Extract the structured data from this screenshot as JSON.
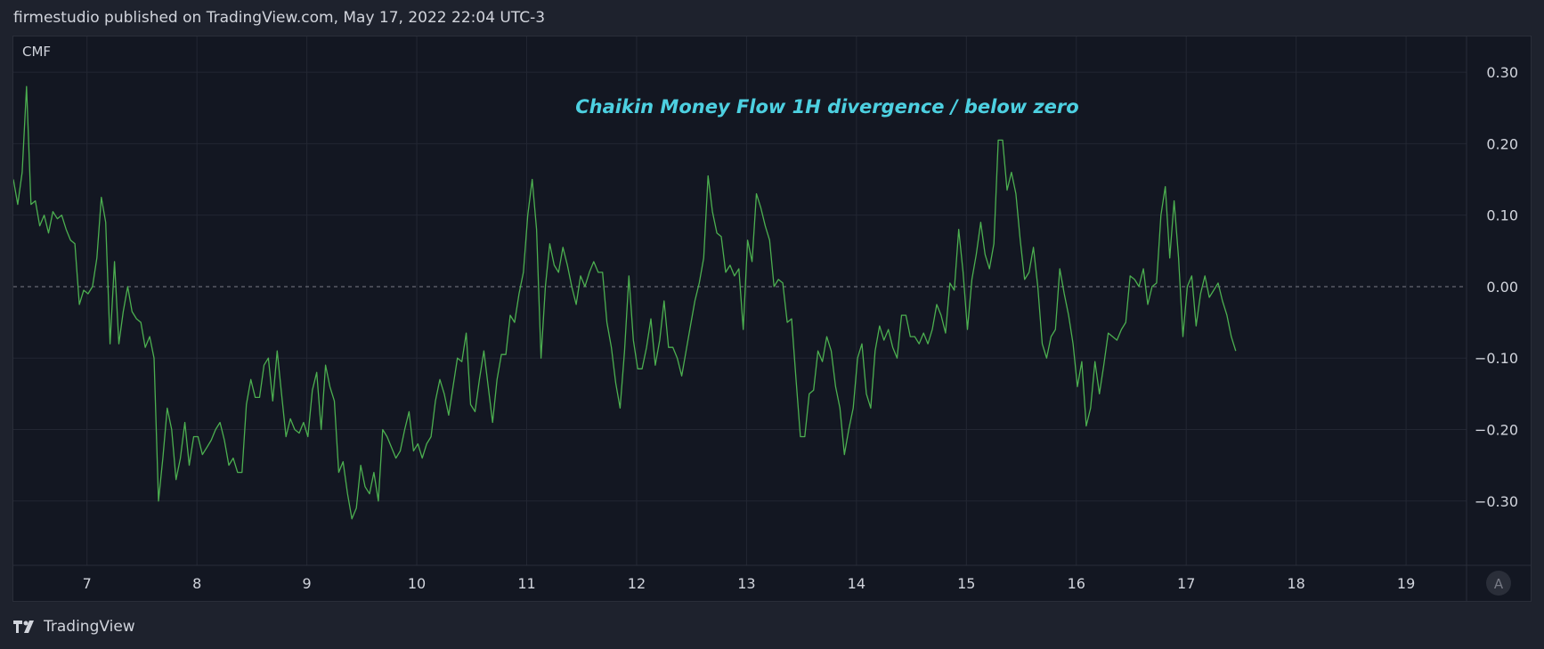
{
  "header": {
    "publisher": "firmestudio published on TradingView.com, May 17, 2022 22:04 UTC-3"
  },
  "footer": {
    "brand": "TradingView",
    "logo_icon": "tradingview-logo-icon"
  },
  "colors": {
    "background": "#1e222d",
    "pane": "#131722",
    "grid": "#232733",
    "line": "#4caf50",
    "annotation": "#4dd0e1",
    "text": "#d1d4dc"
  },
  "chart_data": {
    "type": "line",
    "indicator_label": "CMF",
    "annotation": "Chaikin Money Flow 1H divergence / below zero",
    "x_ticks": [
      "7",
      "8",
      "9",
      "10",
      "11",
      "12",
      "13",
      "14",
      "15",
      "16",
      "17",
      "18",
      "19"
    ],
    "y_ticks": [
      "0.30",
      "0.20",
      "0.10",
      "0.00",
      "−0.10",
      "−0.20",
      "−0.30"
    ],
    "ylim": [
      -0.39,
      0.35
    ],
    "xlim": [
      6.33,
      19.55
    ],
    "zero_line": true,
    "scale_button": "A",
    "series": [
      {
        "values": [
          [
            6.33,
            0.15
          ],
          [
            6.37,
            0.115
          ],
          [
            6.41,
            0.16
          ],
          [
            6.45,
            0.28
          ],
          [
            6.49,
            0.115
          ],
          [
            6.53,
            0.12
          ],
          [
            6.57,
            0.085
          ],
          [
            6.61,
            0.1
          ],
          [
            6.65,
            0.075
          ],
          [
            6.69,
            0.105
          ],
          [
            6.73,
            0.095
          ],
          [
            6.77,
            0.1
          ],
          [
            6.81,
            0.08
          ],
          [
            6.85,
            0.065
          ],
          [
            6.89,
            0.06
          ],
          [
            6.93,
            -0.025
          ],
          [
            6.97,
            -0.005
          ],
          [
            7.01,
            -0.01
          ],
          [
            7.05,
            0.0
          ],
          [
            7.09,
            0.04
          ],
          [
            7.13,
            0.125
          ],
          [
            7.17,
            0.09
          ],
          [
            7.21,
            -0.08
          ],
          [
            7.25,
            0.035
          ],
          [
            7.29,
            -0.08
          ],
          [
            7.33,
            -0.035
          ],
          [
            7.37,
            0.0
          ],
          [
            7.41,
            -0.035
          ],
          [
            7.45,
            -0.045
          ],
          [
            7.49,
            -0.05
          ],
          [
            7.53,
            -0.085
          ],
          [
            7.57,
            -0.07
          ],
          [
            7.61,
            -0.1
          ],
          [
            7.65,
            -0.3
          ],
          [
            7.69,
            -0.24
          ],
          [
            7.73,
            -0.17
          ],
          [
            7.77,
            -0.2
          ],
          [
            7.81,
            -0.27
          ],
          [
            7.85,
            -0.24
          ],
          [
            7.89,
            -0.19
          ],
          [
            7.93,
            -0.25
          ],
          [
            7.97,
            -0.21
          ],
          [
            8.01,
            -0.21
          ],
          [
            8.05,
            -0.235
          ],
          [
            8.09,
            -0.225
          ],
          [
            8.13,
            -0.215
          ],
          [
            8.17,
            -0.2
          ],
          [
            8.21,
            -0.19
          ],
          [
            8.25,
            -0.215
          ],
          [
            8.29,
            -0.25
          ],
          [
            8.33,
            -0.24
          ],
          [
            8.37,
            -0.26
          ],
          [
            8.41,
            -0.26
          ],
          [
            8.45,
            -0.165
          ],
          [
            8.49,
            -0.13
          ],
          [
            8.53,
            -0.155
          ],
          [
            8.57,
            -0.155
          ],
          [
            8.61,
            -0.11
          ],
          [
            8.65,
            -0.1
          ],
          [
            8.69,
            -0.16
          ],
          [
            8.73,
            -0.09
          ],
          [
            8.77,
            -0.15
          ],
          [
            8.81,
            -0.21
          ],
          [
            8.85,
            -0.185
          ],
          [
            8.89,
            -0.2
          ],
          [
            8.93,
            -0.205
          ],
          [
            8.97,
            -0.19
          ],
          [
            9.01,
            -0.21
          ],
          [
            9.05,
            -0.145
          ],
          [
            9.09,
            -0.12
          ],
          [
            9.13,
            -0.2
          ],
          [
            9.17,
            -0.11
          ],
          [
            9.21,
            -0.14
          ],
          [
            9.25,
            -0.16
          ],
          [
            9.29,
            -0.26
          ],
          [
            9.33,
            -0.245
          ],
          [
            9.37,
            -0.29
          ],
          [
            9.41,
            -0.325
          ],
          [
            9.45,
            -0.31
          ],
          [
            9.49,
            -0.25
          ],
          [
            9.53,
            -0.28
          ],
          [
            9.57,
            -0.29
          ],
          [
            9.61,
            -0.26
          ],
          [
            9.65,
            -0.3
          ],
          [
            9.69,
            -0.2
          ],
          [
            9.73,
            -0.21
          ],
          [
            9.77,
            -0.225
          ],
          [
            9.81,
            -0.24
          ],
          [
            9.85,
            -0.23
          ],
          [
            9.89,
            -0.2
          ],
          [
            9.93,
            -0.175
          ],
          [
            9.97,
            -0.23
          ],
          [
            10.01,
            -0.22
          ],
          [
            10.05,
            -0.24
          ],
          [
            10.09,
            -0.22
          ],
          [
            10.13,
            -0.21
          ],
          [
            10.17,
            -0.16
          ],
          [
            10.21,
            -0.13
          ],
          [
            10.25,
            -0.15
          ],
          [
            10.29,
            -0.18
          ],
          [
            10.33,
            -0.14
          ],
          [
            10.37,
            -0.1
          ],
          [
            10.41,
            -0.105
          ],
          [
            10.45,
            -0.065
          ],
          [
            10.49,
            -0.165
          ],
          [
            10.53,
            -0.175
          ],
          [
            10.57,
            -0.13
          ],
          [
            10.61,
            -0.09
          ],
          [
            10.65,
            -0.14
          ],
          [
            10.69,
            -0.19
          ],
          [
            10.73,
            -0.13
          ],
          [
            10.77,
            -0.095
          ],
          [
            10.81,
            -0.095
          ],
          [
            10.85,
            -0.04
          ],
          [
            10.89,
            -0.05
          ],
          [
            10.93,
            -0.01
          ],
          [
            10.97,
            0.02
          ],
          [
            11.01,
            0.1
          ],
          [
            11.05,
            0.15
          ],
          [
            11.09,
            0.08
          ],
          [
            11.13,
            -0.1
          ],
          [
            11.17,
            0.0
          ],
          [
            11.21,
            0.06
          ],
          [
            11.25,
            0.03
          ],
          [
            11.29,
            0.02
          ],
          [
            11.33,
            0.055
          ],
          [
            11.37,
            0.03
          ],
          [
            11.41,
            0.0
          ],
          [
            11.45,
            -0.025
          ],
          [
            11.49,
            0.015
          ],
          [
            11.53,
            0.0
          ],
          [
            11.57,
            0.02
          ],
          [
            11.61,
            0.035
          ],
          [
            11.65,
            0.02
          ],
          [
            11.69,
            0.02
          ],
          [
            11.73,
            -0.05
          ],
          [
            11.77,
            -0.085
          ],
          [
            11.81,
            -0.135
          ],
          [
            11.85,
            -0.17
          ],
          [
            11.89,
            -0.09
          ],
          [
            11.93,
            0.015
          ],
          [
            11.97,
            -0.075
          ],
          [
            12.01,
            -0.115
          ],
          [
            12.05,
            -0.115
          ],
          [
            12.09,
            -0.085
          ],
          [
            12.13,
            -0.045
          ],
          [
            12.17,
            -0.11
          ],
          [
            12.21,
            -0.075
          ],
          [
            12.25,
            -0.02
          ],
          [
            12.29,
            -0.085
          ],
          [
            12.33,
            -0.085
          ],
          [
            12.37,
            -0.1
          ],
          [
            12.41,
            -0.125
          ],
          [
            12.45,
            -0.09
          ],
          [
            12.49,
            -0.055
          ],
          [
            12.53,
            -0.02
          ],
          [
            12.57,
            0.005
          ],
          [
            12.61,
            0.04
          ],
          [
            12.65,
            0.155
          ],
          [
            12.69,
            0.105
          ],
          [
            12.73,
            0.075
          ],
          [
            12.77,
            0.07
          ],
          [
            12.81,
            0.02
          ],
          [
            12.85,
            0.03
          ],
          [
            12.89,
            0.015
          ],
          [
            12.93,
            0.025
          ],
          [
            12.97,
            -0.06
          ],
          [
            13.01,
            0.065
          ],
          [
            13.05,
            0.035
          ],
          [
            13.09,
            0.13
          ],
          [
            13.13,
            0.11
          ],
          [
            13.17,
            0.085
          ],
          [
            13.21,
            0.065
          ],
          [
            13.25,
            0.0
          ],
          [
            13.29,
            0.01
          ],
          [
            13.33,
            0.005
          ],
          [
            13.37,
            -0.05
          ],
          [
            13.41,
            -0.045
          ],
          [
            13.45,
            -0.13
          ],
          [
            13.49,
            -0.21
          ],
          [
            13.53,
            -0.21
          ],
          [
            13.57,
            -0.15
          ],
          [
            13.61,
            -0.145
          ],
          [
            13.65,
            -0.09
          ],
          [
            13.69,
            -0.105
          ],
          [
            13.73,
            -0.07
          ],
          [
            13.77,
            -0.09
          ],
          [
            13.81,
            -0.14
          ],
          [
            13.85,
            -0.17
          ],
          [
            13.89,
            -0.235
          ],
          [
            13.93,
            -0.2
          ],
          [
            13.97,
            -0.17
          ],
          [
            14.01,
            -0.1
          ],
          [
            14.05,
            -0.08
          ],
          [
            14.09,
            -0.15
          ],
          [
            14.13,
            -0.17
          ],
          [
            14.17,
            -0.09
          ],
          [
            14.21,
            -0.055
          ],
          [
            14.25,
            -0.075
          ],
          [
            14.29,
            -0.06
          ],
          [
            14.33,
            -0.085
          ],
          [
            14.37,
            -0.1
          ],
          [
            14.41,
            -0.04
          ],
          [
            14.45,
            -0.04
          ],
          [
            14.49,
            -0.07
          ],
          [
            14.53,
            -0.07
          ],
          [
            14.57,
            -0.08
          ],
          [
            14.61,
            -0.065
          ],
          [
            14.65,
            -0.08
          ],
          [
            14.69,
            -0.06
          ],
          [
            14.73,
            -0.025
          ],
          [
            14.77,
            -0.04
          ],
          [
            14.81,
            -0.065
          ],
          [
            14.85,
            0.005
          ],
          [
            14.89,
            -0.005
          ],
          [
            14.93,
            0.08
          ],
          [
            14.97,
            0.02
          ],
          [
            15.01,
            -0.06
          ],
          [
            15.05,
            0.01
          ],
          [
            15.09,
            0.045
          ],
          [
            15.13,
            0.09
          ],
          [
            15.17,
            0.045
          ],
          [
            15.21,
            0.025
          ],
          [
            15.25,
            0.06
          ],
          [
            15.29,
            0.205
          ],
          [
            15.33,
            0.205
          ],
          [
            15.37,
            0.135
          ],
          [
            15.41,
            0.16
          ],
          [
            15.45,
            0.13
          ],
          [
            15.49,
            0.065
          ],
          [
            15.53,
            0.01
          ],
          [
            15.57,
            0.02
          ],
          [
            15.61,
            0.055
          ],
          [
            15.65,
            0.0
          ],
          [
            15.69,
            -0.08
          ],
          [
            15.73,
            -0.1
          ],
          [
            15.77,
            -0.07
          ],
          [
            15.81,
            -0.06
          ],
          [
            15.85,
            0.025
          ],
          [
            15.89,
            -0.01
          ],
          [
            15.93,
            -0.04
          ],
          [
            15.97,
            -0.08
          ],
          [
            16.01,
            -0.14
          ],
          [
            16.05,
            -0.105
          ],
          [
            16.09,
            -0.195
          ],
          [
            16.13,
            -0.17
          ],
          [
            16.17,
            -0.105
          ],
          [
            16.21,
            -0.15
          ],
          [
            16.25,
            -0.11
          ],
          [
            16.29,
            -0.065
          ],
          [
            16.33,
            -0.07
          ],
          [
            16.37,
            -0.075
          ],
          [
            16.41,
            -0.06
          ],
          [
            16.45,
            -0.05
          ],
          [
            16.49,
            0.015
          ],
          [
            16.53,
            0.01
          ],
          [
            16.57,
            0.0
          ],
          [
            16.61,
            0.025
          ],
          [
            16.65,
            -0.025
          ],
          [
            16.69,
            0.0
          ],
          [
            16.73,
            0.005
          ],
          [
            16.77,
            0.1
          ],
          [
            16.81,
            0.14
          ],
          [
            16.85,
            0.04
          ],
          [
            16.89,
            0.12
          ],
          [
            16.93,
            0.04
          ],
          [
            16.97,
            -0.07
          ],
          [
            17.01,
            0.0
          ],
          [
            17.05,
            0.015
          ],
          [
            17.09,
            -0.055
          ],
          [
            17.13,
            -0.01
          ],
          [
            17.17,
            0.015
          ],
          [
            17.21,
            -0.015
          ],
          [
            17.25,
            -0.005
          ],
          [
            17.29,
            0.005
          ],
          [
            17.33,
            -0.02
          ],
          [
            17.37,
            -0.04
          ],
          [
            17.41,
            -0.07
          ],
          [
            17.45,
            -0.09
          ]
        ]
      }
    ]
  }
}
